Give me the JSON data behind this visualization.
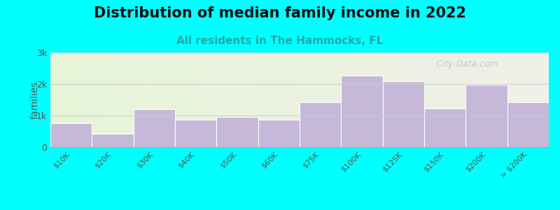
{
  "title": "Distribution of median family income in 2022",
  "subtitle": "All residents in The Hammocks, FL",
  "xlabel": "",
  "ylabel": "families",
  "background_color": "#00FFFF",
  "bar_color": "#c5b8d8",
  "bar_edge_color": "#ffffff",
  "categories": [
    "$10K",
    "$20K",
    "$30K",
    "$40K",
    "$50K",
    "$60K",
    "$75K",
    "$100K",
    "$125K",
    "$150K",
    "$200K",
    "> $200K"
  ],
  "values": [
    750,
    430,
    1200,
    870,
    950,
    870,
    1430,
    2270,
    2080,
    1230,
    1970,
    1430
  ],
  "yticks": [
    0,
    1000,
    2000,
    3000
  ],
  "ytick_labels": [
    "0",
    "1k",
    "2k",
    "3k"
  ],
  "ylim": [
    0,
    3000
  ],
  "title_fontsize": 15,
  "subtitle_fontsize": 11,
  "subtitle_color": "#22AAAA",
  "title_color": "#111111",
  "tick_color": "#555555",
  "ylabel_color": "#555555",
  "watermark": "City-Data.com",
  "watermark_color": "#c0c0c0",
  "bg_left_color": "#e6f5d8",
  "bg_right_color": "#f0f0e8"
}
